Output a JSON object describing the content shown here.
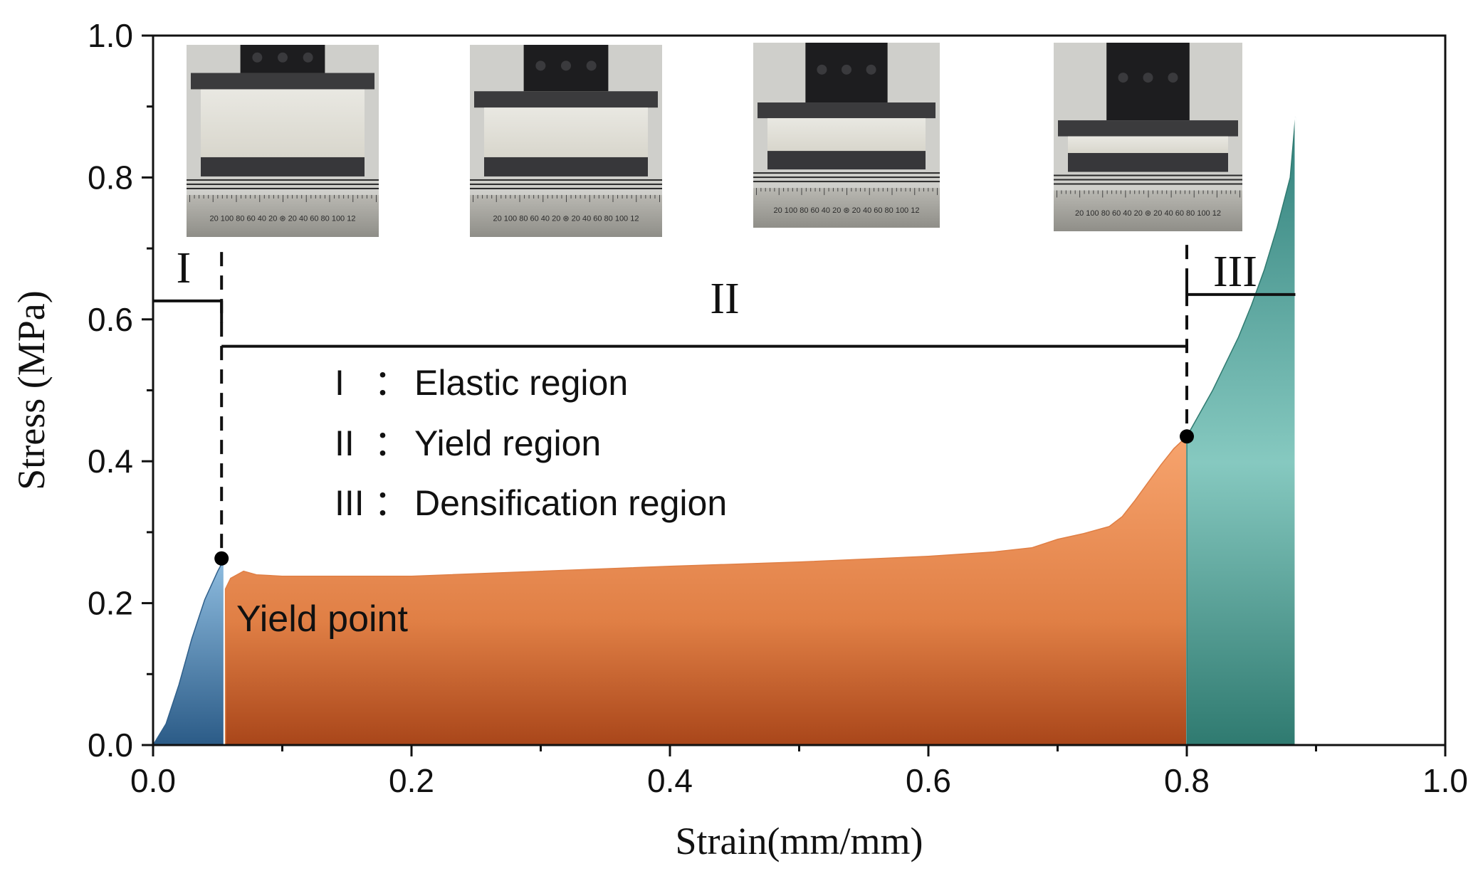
{
  "chart_data": {
    "type": "area",
    "xlabel": "Strain(mm/mm)",
    "ylabel": "Stress (MPa)",
    "xlim": [
      0.0,
      1.0
    ],
    "ylim": [
      0.0,
      1.0
    ],
    "x_ticks": [
      "0.0",
      "0.2",
      "0.4",
      "0.6",
      "0.8",
      "1.0"
    ],
    "y_ticks": [
      "0.0",
      "0.2",
      "0.4",
      "0.6",
      "0.8",
      "1.0"
    ],
    "grid": false,
    "series": [
      {
        "region": "I",
        "color": "#4a86b5",
        "x": [
          0.0,
          0.01,
          0.02,
          0.03,
          0.04,
          0.05,
          0.055
        ],
        "y": [
          0.0,
          0.03,
          0.085,
          0.15,
          0.205,
          0.245,
          0.262
        ]
      },
      {
        "region": "II",
        "color": "#e9844a",
        "x": [
          0.056,
          0.06,
          0.07,
          0.08,
          0.1,
          0.15,
          0.2,
          0.3,
          0.4,
          0.5,
          0.6,
          0.65,
          0.68,
          0.7,
          0.72,
          0.74,
          0.75,
          0.76,
          0.77,
          0.78,
          0.79,
          0.8
        ],
        "y": [
          0.22,
          0.235,
          0.245,
          0.24,
          0.238,
          0.238,
          0.238,
          0.245,
          0.252,
          0.258,
          0.266,
          0.272,
          0.278,
          0.29,
          0.298,
          0.308,
          0.322,
          0.345,
          0.37,
          0.395,
          0.418,
          0.435
        ]
      },
      {
        "region": "III",
        "color": "#3f9a91",
        "x": [
          0.8,
          0.82,
          0.84,
          0.85,
          0.86,
          0.87,
          0.88,
          0.884
        ],
        "y": [
          0.435,
          0.5,
          0.575,
          0.62,
          0.67,
          0.73,
          0.8,
          0.885
        ]
      }
    ],
    "markers": [
      {
        "label": "Yield point",
        "x": 0.053,
        "y": 0.263
      },
      {
        "label": "",
        "x": 0.8,
        "y": 0.435
      }
    ],
    "boundaries": [
      0.053,
      0.8
    ],
    "regions": [
      {
        "numeral": "I"
      },
      {
        "numeral": "II"
      },
      {
        "numeral": "III"
      }
    ],
    "legend": [
      {
        "numeral": "I",
        "sep": "：",
        "text": "Elastic region"
      },
      {
        "numeral": "II",
        "sep": "：",
        "text": "Yield region"
      },
      {
        "numeral": "III",
        "sep": "：",
        "text": "Densification region"
      }
    ],
    "annotation": "Yield point",
    "photos": [
      {
        "name": "specimen-photo-1",
        "ruler": "20 100 80 60 40 20 ⊛ 20 40 60 80 100 12"
      },
      {
        "name": "specimen-photo-2",
        "ruler": "20 100 80 60 40 20 ⊛ 20 40 60 80 100 12"
      },
      {
        "name": "specimen-photo-3",
        "ruler": "20 100 80 60 40 20 ⊛ 20 40 60 80 100 12"
      },
      {
        "name": "specimen-photo-4",
        "ruler": "20 100 80 60 40 20 ⊛ 20 40 60 80 100 12"
      }
    ]
  }
}
